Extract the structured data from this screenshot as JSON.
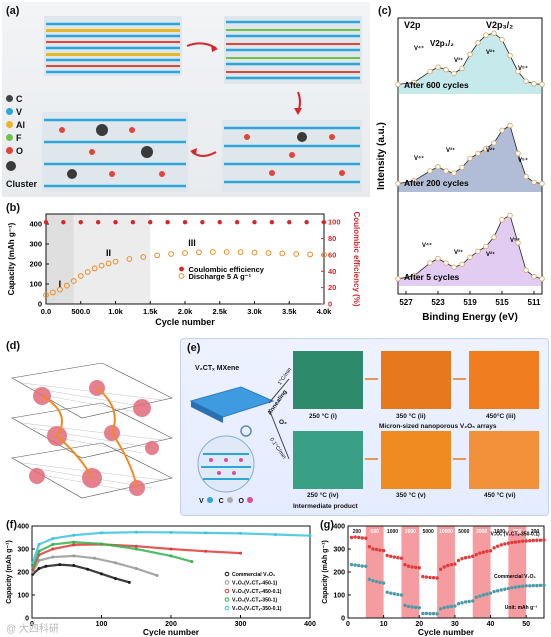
{
  "panels": {
    "a": {
      "label": "(a)",
      "legend": [
        {
          "name": "C",
          "color": "#444444"
        },
        {
          "name": "V",
          "color": "#2aa7d8"
        },
        {
          "name": "Al",
          "color": "#e7b629"
        },
        {
          "name": "F",
          "color": "#6cc24a"
        },
        {
          "name": "O",
          "color": "#e0453a"
        }
      ],
      "cluster_label": "Cluster"
    },
    "b": {
      "label": "(b)",
      "regions": [
        "I",
        "II",
        "III"
      ]
    },
    "c": {
      "label": "(c)"
    },
    "d": {
      "label": "(d)"
    },
    "e": {
      "label": "(e)",
      "mxene_label": "V₂CTₓ MXene",
      "annealing": "Annealing",
      "rate_top": "1°C/min",
      "rate_bottom": "0.1°C/min",
      "o2": "O₂",
      "top_temps": [
        "250 °C (i)",
        "350 °C (ii)",
        "450°C (iii)"
      ],
      "bottom_temps": [
        "250 °C (iv)",
        "350 °C (v)",
        "450 °C (vi)"
      ],
      "intermediate": "Intermediate product",
      "micro_arrays": "Micron-sized nanoporous V₂O₅ arrays",
      "atom_legend": [
        "V",
        "C",
        "O"
      ]
    },
    "f": {
      "label": "(f)"
    },
    "g": {
      "label": "(g)"
    }
  },
  "colors": {
    "red": "#d7262b",
    "orange": "#f08b22",
    "grid": "#dddddd",
    "v_dark_blue": "#1f3e8c",
    "v_green": "#8cc63f",
    "v_teal": "#5bc0c9",
    "v_lilac": "#b06dd6"
  },
  "watermark": "@ 大四科研",
  "chart_data": [
    {
      "id": "b",
      "type": "scatter",
      "xlabel": "Cycle number",
      "ylabel": "Capacity (mAh g⁻¹)",
      "ylabel2": "Coulombic efficiency (%)",
      "xlim": [
        0,
        4000
      ],
      "ylim": [
        0,
        450
      ],
      "ylim2": [
        0,
        110
      ],
      "xticks": [
        "0.0",
        "500.0",
        "1.0k",
        "1.5k",
        "2.0k",
        "2.5k",
        "3.0k",
        "3.5k",
        "4.0k"
      ],
      "xtick_values": [
        0,
        500,
        1000,
        1500,
        2000,
        2500,
        3000,
        3500,
        4000
      ],
      "yticks": [
        0,
        100,
        200,
        300,
        400
      ],
      "yticks2": [
        0,
        20,
        40,
        60,
        80,
        100
      ],
      "shaded_regions": [
        [
          0,
          400
        ],
        [
          400,
          1500
        ]
      ],
      "series": [
        {
          "name": "Coulombic efficiency",
          "axis": "right",
          "x": [
            0,
            250,
            500,
            750,
            1000,
            1250,
            1500,
            1750,
            2000,
            2250,
            2500,
            2750,
            3000,
            3250,
            3500,
            3750,
            4000
          ],
          "values": [
            100,
            100,
            100,
            100,
            100,
            100,
            100,
            100,
            100,
            100,
            100,
            100,
            100,
            100,
            100,
            100,
            100
          ]
        },
        {
          "name": "Discharge 5 A g⁻¹",
          "axis": "left",
          "x": [
            0,
            100,
            200,
            300,
            400,
            500,
            600,
            700,
            800,
            900,
            1000,
            1200,
            1400,
            1600,
            1800,
            2000,
            2200,
            2400,
            2600,
            2800,
            3000,
            3200,
            3400,
            3600,
            3800,
            4000
          ],
          "values": [
            45,
            58,
            72,
            92,
            115,
            140,
            160,
            178,
            192,
            203,
            212,
            225,
            235,
            243,
            250,
            255,
            258,
            260,
            260,
            259,
            257,
            255,
            253,
            250,
            248,
            246
          ]
        }
      ],
      "region_labels": [
        "I",
        "II",
        "III"
      ]
    },
    {
      "id": "c",
      "type": "line",
      "title": "V2p",
      "xlabel": "Binding Energy (eV)",
      "ylabel": "Intensity (a.u.)",
      "xticks": [
        527,
        523,
        519,
        515,
        511
      ],
      "xlim": [
        528,
        510
      ],
      "peak_labels": [
        "V2p₁/₂",
        "V2p₃/₂"
      ],
      "species_labels": [
        "V⁴⁺",
        "V³⁺",
        "V²⁺",
        "V⁵⁺"
      ],
      "series": [
        {
          "name": "After 600 cycles",
          "x": [
            528,
            526,
            524,
            523,
            522,
            521,
            520,
            519,
            518,
            517,
            516,
            515,
            514,
            513,
            512,
            511,
            510
          ],
          "values": [
            0.15,
            0.18,
            0.35,
            0.42,
            0.38,
            0.32,
            0.4,
            0.62,
            0.8,
            0.92,
            0.95,
            0.85,
            0.6,
            0.35,
            0.2,
            0.16,
            0.15
          ]
        },
        {
          "name": "After 200 cycles",
          "x": [
            528,
            526,
            524,
            523,
            522,
            521,
            520,
            519,
            518,
            517,
            516,
            515,
            514,
            513,
            512,
            511,
            510
          ],
          "values": [
            0.12,
            0.16,
            0.3,
            0.36,
            0.3,
            0.27,
            0.35,
            0.48,
            0.55,
            0.62,
            0.7,
            0.88,
            0.95,
            0.55,
            0.22,
            0.14,
            0.12
          ]
        },
        {
          "name": "After 5 cycles",
          "x": [
            528,
            526,
            524,
            523,
            522,
            521,
            520,
            519,
            518,
            517,
            516,
            515,
            514,
            513,
            512,
            511,
            510
          ],
          "values": [
            0.1,
            0.14,
            0.32,
            0.38,
            0.32,
            0.26,
            0.3,
            0.4,
            0.48,
            0.55,
            0.68,
            0.92,
            0.98,
            0.6,
            0.22,
            0.13,
            0.1
          ]
        }
      ]
    },
    {
      "id": "f",
      "type": "scatter",
      "xlabel": "Cycle number",
      "ylabel": "Capacity (mAh g⁻¹)",
      "xlim": [
        0,
        400
      ],
      "ylim": [
        0,
        400
      ],
      "xticks": [
        0,
        100,
        200,
        300,
        400
      ],
      "yticks": [
        0,
        100,
        200,
        300,
        400
      ],
      "series": [
        {
          "name": "Commercial V₂O₅",
          "color": "#1a1a1a",
          "x": [
            1,
            10,
            20,
            40,
            60,
            80,
            100,
            120,
            140
          ],
          "values": [
            190,
            215,
            225,
            232,
            228,
            212,
            192,
            172,
            155
          ]
        },
        {
          "name": "V₂O₅(V₂CTₓ-450-1)",
          "color": "#9a9a9a",
          "x": [
            1,
            10,
            30,
            60,
            90,
            120,
            150,
            180
          ],
          "values": [
            200,
            250,
            265,
            270,
            260,
            240,
            215,
            185
          ]
        },
        {
          "name": "V₂O₅(V₂CTₓ-450-0.1)",
          "color": "#e23a3a",
          "x": [
            1,
            10,
            30,
            60,
            100,
            150,
            200,
            250,
            300
          ],
          "values": [
            210,
            275,
            300,
            318,
            320,
            312,
            300,
            290,
            282
          ]
        },
        {
          "name": "V₂O₅(V₂CTₓ-350-1)",
          "color": "#36b24f",
          "x": [
            1,
            10,
            30,
            60,
            100,
            150,
            200,
            230
          ],
          "values": [
            220,
            290,
            320,
            330,
            322,
            300,
            270,
            245
          ]
        },
        {
          "name": "V₂O₅(V₂CTₓ-350-0.1)",
          "color": "#3cc3de",
          "x": [
            1,
            10,
            30,
            60,
            100,
            150,
            200,
            250,
            300,
            350,
            400
          ],
          "values": [
            240,
            320,
            345,
            360,
            370,
            373,
            372,
            370,
            368,
            363,
            358
          ]
        }
      ]
    },
    {
      "id": "g",
      "type": "scatter",
      "xlabel": "Cycle number",
      "ylabel": "Capacity (mAh g⁻¹)",
      "xlim": [
        0,
        55
      ],
      "ylim": [
        0,
        400
      ],
      "xticks": [
        0,
        10,
        20,
        30,
        40,
        50
      ],
      "yticks": [
        0,
        100,
        200,
        300,
        400
      ],
      "rate_labels": [
        "200",
        "500",
        "1000",
        "2000",
        "5000",
        "10000",
        "5000",
        "2000",
        "1000",
        "500",
        "200"
      ],
      "unit_label": "Unit: mAh g⁻¹",
      "shaded_bands": [
        [
          5,
          10
        ],
        [
          15,
          20
        ],
        [
          25,
          30
        ],
        [
          35,
          40
        ],
        [
          45,
          50
        ]
      ],
      "series": [
        {
          "name": "V₂O₅ (V₂CTₓ-350-0.1)",
          "color": "#e23a3a",
          "x": [
            1,
            2,
            3,
            4,
            5,
            6,
            7,
            8,
            9,
            10,
            11,
            12,
            13,
            14,
            15,
            16,
            17,
            18,
            19,
            20,
            21,
            22,
            23,
            24,
            25,
            26,
            27,
            28,
            29,
            30,
            31,
            32,
            33,
            34,
            35,
            36,
            37,
            38,
            39,
            40,
            41,
            42,
            43,
            44,
            45,
            46,
            47,
            48,
            49,
            50,
            51,
            52,
            53,
            54,
            55
          ],
          "values": [
            350,
            352,
            350,
            348,
            347,
            310,
            300,
            298,
            295,
            293,
            272,
            268,
            265,
            262,
            260,
            232,
            225,
            222,
            220,
            218,
            180,
            178,
            176,
            175,
            174,
            212,
            222,
            228,
            232,
            235,
            250,
            258,
            262,
            265,
            268,
            275,
            282,
            286,
            290,
            292,
            305,
            312,
            318,
            322,
            325,
            328,
            330,
            332,
            334,
            335,
            336,
            337,
            338,
            338,
            339
          ]
        },
        {
          "name": "Commercial V₂O₅",
          "color": "#4a9aa8",
          "x": [
            1,
            2,
            3,
            4,
            5,
            6,
            7,
            8,
            9,
            10,
            11,
            12,
            13,
            14,
            15,
            16,
            17,
            18,
            19,
            20,
            21,
            22,
            23,
            24,
            25,
            26,
            27,
            28,
            29,
            30,
            31,
            32,
            33,
            34,
            35,
            36,
            37,
            38,
            39,
            40,
            41,
            42,
            43,
            44,
            45,
            46,
            47,
            48,
            49,
            50,
            51,
            52,
            53,
            54,
            55
          ],
          "values": [
            232,
            230,
            228,
            226,
            225,
            168,
            162,
            158,
            155,
            152,
            112,
            108,
            105,
            102,
            100,
            55,
            50,
            48,
            46,
            45,
            20,
            20,
            19,
            19,
            18,
            40,
            45,
            48,
            50,
            52,
            62,
            66,
            70,
            72,
            74,
            90,
            95,
            100,
            104,
            108,
            115,
            118,
            122,
            125,
            128,
            132,
            134,
            136,
            138,
            140,
            140,
            141,
            141,
            142,
            142
          ]
        }
      ]
    }
  ]
}
